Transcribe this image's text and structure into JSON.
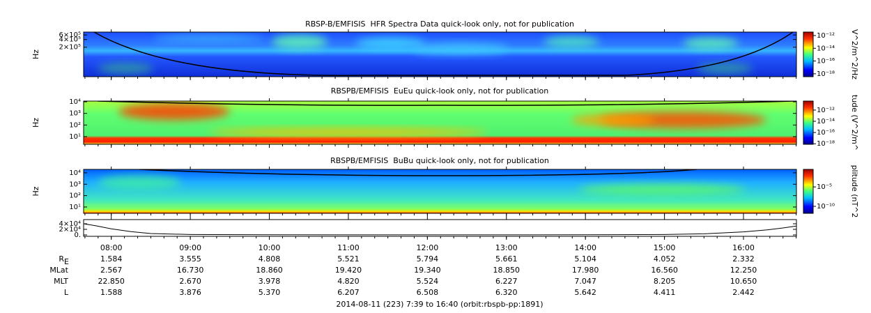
{
  "chart_data": [
    {
      "type": "spectrogram",
      "title": "RBSP-B/EMFISIS  HFR Spectra Data quick-look only, not for publication",
      "ylabel": "Hz",
      "log_scale": true,
      "ylim": [
        14000,
        780000
      ],
      "yticks": [
        {
          "value": 200000,
          "label": "2×10⁵"
        },
        {
          "value": 400000,
          "label": "4×10⁵"
        },
        {
          "value": 600000,
          "label": "6×10⁵"
        }
      ],
      "colorbar": {
        "label": "V^2/m^2/Hz",
        "log_scale": true,
        "lim": [
          3.5e-19,
          3.5e-12
        ],
        "ticks": [
          {
            "value": 1e-12,
            "label": "10⁻¹²"
          },
          {
            "value": 1e-14,
            "label": "10⁻¹⁴"
          },
          {
            "value": 1e-16,
            "label": "10⁻¹⁶"
          },
          {
            "value": 1e-18,
            "label": "10⁻¹⁸"
          }
        ]
      }
    },
    {
      "type": "spectrogram",
      "title": "RBSPB/EMFISIS  EuEu quick-look only, not for publication",
      "ylabel": "Hz",
      "log_scale": true,
      "ylim": [
        2.2,
        11500
      ],
      "yticks": [
        {
          "value": 10,
          "label": "10¹"
        },
        {
          "value": 100,
          "label": "10²"
        },
        {
          "value": 1000,
          "label": "10³"
        },
        {
          "value": 10000,
          "label": "10⁴"
        }
      ],
      "colorbar": {
        "label": "tude (V^2/m^",
        "log_scale": true,
        "lim": [
          8e-19,
          4e-11
        ],
        "ticks": [
          {
            "value": 1e-12,
            "label": "10⁻¹²"
          },
          {
            "value": 1e-14,
            "label": "10⁻¹⁴"
          },
          {
            "value": 1e-16,
            "label": "10⁻¹⁶"
          },
          {
            "value": 1e-18,
            "label": "10⁻¹⁸"
          }
        ]
      }
    },
    {
      "type": "spectrogram",
      "title": "RBSPB/EMFISIS  BuBu quick-look only, not for publication",
      "ylabel": "Hz",
      "log_scale": true,
      "ylim": [
        2.8,
        20000
      ],
      "yticks": [
        {
          "value": 10,
          "label": "10¹"
        },
        {
          "value": 100,
          "label": "10²"
        },
        {
          "value": 1000,
          "label": "10³"
        },
        {
          "value": 10000,
          "label": "10⁴"
        }
      ],
      "colorbar": {
        "label": "plitude (nT^2",
        "log_scale": true,
        "lim": [
          1.6e-12,
          0.32
        ],
        "ticks": [
          {
            "value": 1e-05,
            "label": "10⁻⁵"
          },
          {
            "value": 1e-10,
            "label": "10⁻¹⁰"
          }
        ]
      }
    },
    {
      "type": "line",
      "color": "#000000",
      "ylim": [
        -5000,
        55000
      ],
      "yticks": [
        {
          "value": 0,
          "label": "0."
        },
        {
          "value": 20000,
          "label": "2×10⁴"
        },
        {
          "value": 40000,
          "label": "4×10⁴"
        }
      ],
      "x": [
        7.65,
        7.8,
        8,
        8.25,
        8.5,
        9,
        10,
        11,
        12,
        13,
        14,
        15,
        15.5,
        16,
        16.3,
        16.5,
        16.67
      ],
      "series": [
        {
          "values": [
            40000,
            33000,
            22000,
            12000,
            5000,
            1500,
            400,
            200,
            150,
            200,
            400,
            1500,
            4000,
            11000,
            18000,
            25000,
            32000
          ]
        }
      ]
    }
  ],
  "time_axis": {
    "xlim": [
      7.65,
      16.67
    ],
    "xticks": [
      {
        "value": 8,
        "label": "08:00"
      },
      {
        "value": 9,
        "label": "09:00"
      },
      {
        "value": 10,
        "label": "10:00"
      },
      {
        "value": 11,
        "label": "11:00"
      },
      {
        "value": 12,
        "label": "12:00"
      },
      {
        "value": 13,
        "label": "13:00"
      },
      {
        "value": 14,
        "label": "14:00"
      },
      {
        "value": 15,
        "label": "15:00"
      },
      {
        "value": 16,
        "label": "16:00"
      }
    ]
  },
  "ephemeris": {
    "rows": [
      {
        "label": "R",
        "subscript": "E",
        "values": [
          "1.584",
          "3.555",
          "4.808",
          "5.521",
          "5.794",
          "5.661",
          "5.104",
          "4.052",
          "2.332"
        ]
      },
      {
        "label": "MLat",
        "values": [
          "2.567",
          "16.730",
          "18.860",
          "19.420",
          "19.340",
          "18.850",
          "17.980",
          "16.560",
          "12.250"
        ]
      },
      {
        "label": "MLT",
        "values": [
          "22.850",
          "2.670",
          "3.978",
          "4.820",
          "5.524",
          "6.227",
          "7.047",
          "8.205",
          "10.650"
        ]
      },
      {
        "label": "L",
        "values": [
          "1.588",
          "3.876",
          "5.370",
          "6.207",
          "6.508",
          "6.320",
          "5.642",
          "4.411",
          "2.442"
        ]
      }
    ]
  },
  "footer": "2014-08-11 (223) 7:39 to 16:40 (orbit:rbspb-pp:1891)"
}
